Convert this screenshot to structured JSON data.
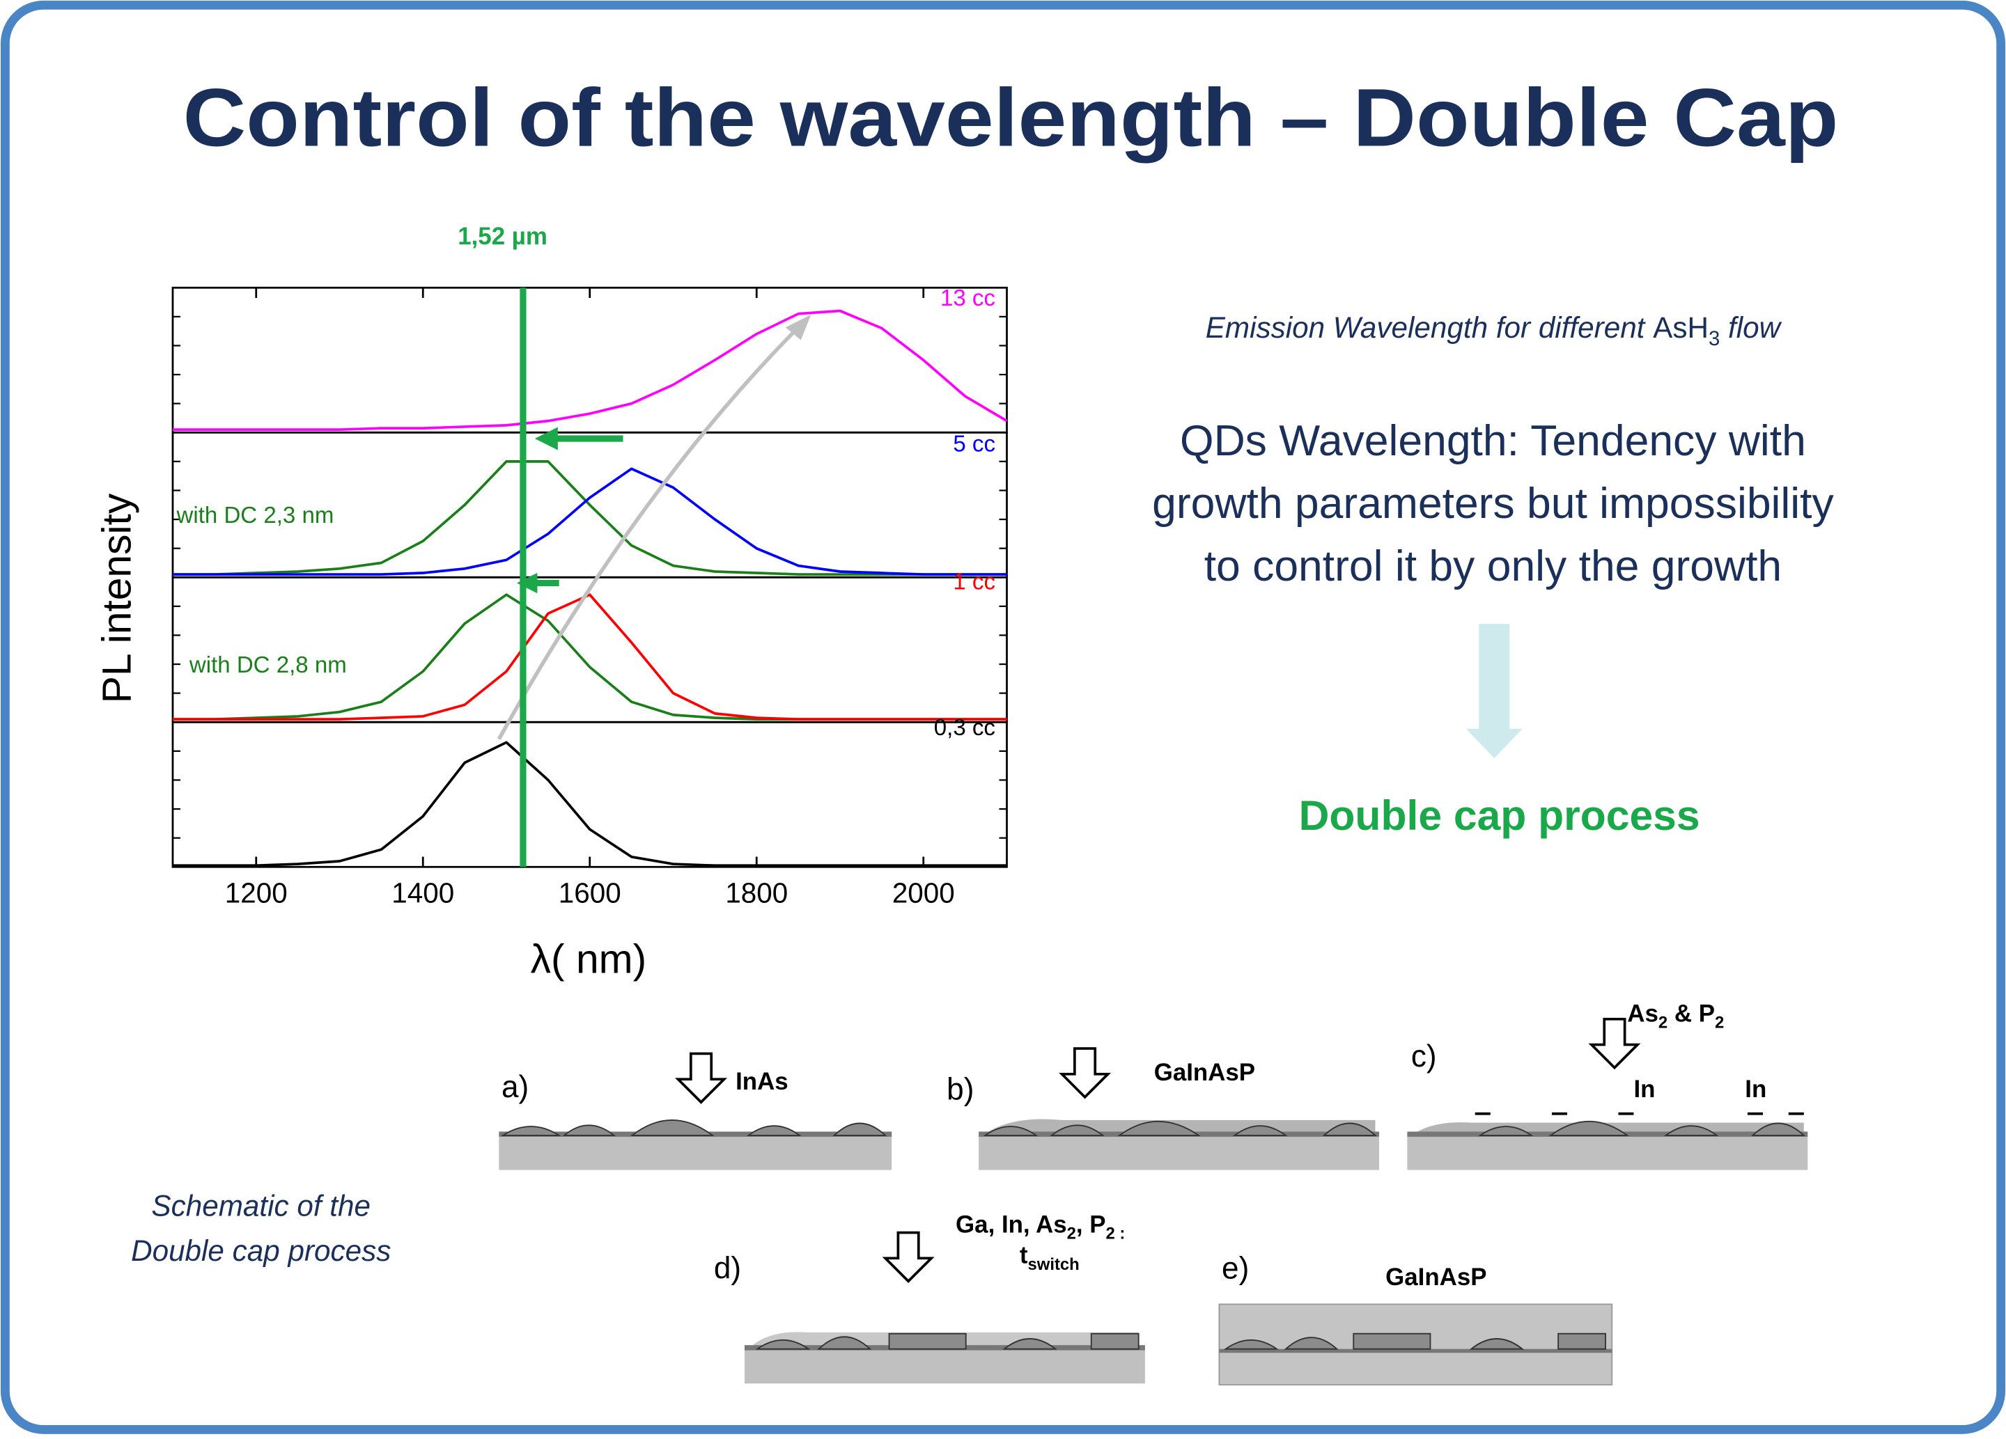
{
  "title": "Control of the wavelength – Double Cap",
  "chart_data": [
    {
      "type": "line",
      "vline": {
        "value": 1520,
        "label": "1,52 µm"
      },
      "xlim": [
        1100,
        2100
      ],
      "ylim": [
        0,
        1
      ],
      "x": [
        1100,
        1150,
        1200,
        1250,
        1300,
        1350,
        1400,
        1450,
        1500,
        1550,
        1600,
        1650,
        1700,
        1750,
        1800,
        1850,
        1900,
        1950,
        2000,
        2050,
        2100
      ],
      "series": [
        {
          "name": "13 cc",
          "color": "#ff00ff",
          "values": [
            0.02,
            0.02,
            0.02,
            0.02,
            0.02,
            0.03,
            0.03,
            0.04,
            0.05,
            0.08,
            0.13,
            0.2,
            0.33,
            0.5,
            0.68,
            0.82,
            0.84,
            0.72,
            0.5,
            0.25,
            0.08
          ]
        }
      ]
    },
    {
      "type": "line",
      "xlim": [
        1100,
        2100
      ],
      "ylim": [
        0,
        1
      ],
      "x": [
        1100,
        1150,
        1200,
        1250,
        1300,
        1350,
        1400,
        1450,
        1500,
        1550,
        1600,
        1650,
        1700,
        1750,
        1800,
        1850,
        1900,
        1950,
        2000,
        2050,
        2100
      ],
      "series": [
        {
          "name": "with DC 2,3 nm",
          "color": "#1a7f1a",
          "values": [
            0.02,
            0.02,
            0.03,
            0.04,
            0.06,
            0.1,
            0.25,
            0.5,
            0.8,
            0.8,
            0.5,
            0.22,
            0.08,
            0.04,
            0.03,
            0.02,
            0.02,
            0.02,
            0.02,
            0.02,
            0.02
          ]
        },
        {
          "name": "5 cc",
          "color": "#0000ff",
          "values": [
            0.02,
            0.02,
            0.02,
            0.02,
            0.02,
            0.02,
            0.03,
            0.06,
            0.12,
            0.3,
            0.55,
            0.75,
            0.62,
            0.4,
            0.2,
            0.08,
            0.04,
            0.03,
            0.02,
            0.02,
            0.02
          ]
        }
      ]
    },
    {
      "type": "line",
      "xlim": [
        1100,
        2100
      ],
      "ylim": [
        0,
        1
      ],
      "x": [
        1100,
        1150,
        1200,
        1250,
        1300,
        1350,
        1400,
        1450,
        1500,
        1550,
        1600,
        1650,
        1700,
        1750,
        1800,
        1850,
        1900,
        1950,
        2000,
        2050,
        2100
      ],
      "series": [
        {
          "name": "with DC 2,8 nm",
          "color": "#1a7f1a",
          "values": [
            0.02,
            0.02,
            0.03,
            0.04,
            0.07,
            0.14,
            0.35,
            0.68,
            0.88,
            0.7,
            0.38,
            0.14,
            0.05,
            0.03,
            0.02,
            0.02,
            0.02,
            0.02,
            0.02,
            0.02,
            0.02
          ]
        },
        {
          "name": "1 cc",
          "color": "#ff0000",
          "values": [
            0.02,
            0.02,
            0.02,
            0.02,
            0.02,
            0.03,
            0.04,
            0.12,
            0.35,
            0.75,
            0.88,
            0.55,
            0.2,
            0.06,
            0.03,
            0.02,
            0.02,
            0.02,
            0.02,
            0.02,
            0.02
          ]
        }
      ]
    },
    {
      "type": "line",
      "xlim": [
        1100,
        2100
      ],
      "ylim": [
        0,
        1
      ],
      "xticks": [
        1200,
        1400,
        1600,
        1800,
        2000
      ],
      "xlabel": "λ( nm)",
      "ylabel": "PL intensity",
      "x": [
        1100,
        1150,
        1200,
        1250,
        1300,
        1350,
        1400,
        1450,
        1500,
        1550,
        1600,
        1650,
        1700,
        1750,
        1800,
        1850,
        1900,
        1950,
        2000,
        2050,
        2100
      ],
      "series": [
        {
          "name": "0,3 cc",
          "color": "#000000",
          "values": [
            0.01,
            0.01,
            0.01,
            0.02,
            0.04,
            0.12,
            0.35,
            0.72,
            0.86,
            0.6,
            0.26,
            0.07,
            0.02,
            0.01,
            0.01,
            0.01,
            0.01,
            0.01,
            0.01,
            0.01,
            0.01
          ]
        }
      ]
    }
  ],
  "description": {
    "caption": [
      "Emission Wavelength for different ",
      "AsH",
      "3",
      " flow"
    ],
    "statement": [
      "QDs Wavelength: Tendency with",
      "growth parameters but impossibility",
      "to control it by only the growth"
    ],
    "conclusion": "Double cap process"
  },
  "schematic": {
    "caption": [
      "Schematic of the",
      "Double cap process"
    ],
    "steps": [
      {
        "label": "a)",
        "material": "InAs"
      },
      {
        "label": "b)",
        "material": "GaInAsP"
      },
      {
        "label": "c)",
        "flux": [
          "As",
          "2",
          " & P",
          "2"
        ],
        "species": [
          "In",
          "In"
        ]
      },
      {
        "label": "d)",
        "flux": [
          "Ga, In, As",
          "2",
          ", P",
          "2",
          " :"
        ],
        "time": [
          "t",
          "switch"
        ]
      },
      {
        "label": "e)",
        "material": "GaInAsP"
      }
    ]
  }
}
